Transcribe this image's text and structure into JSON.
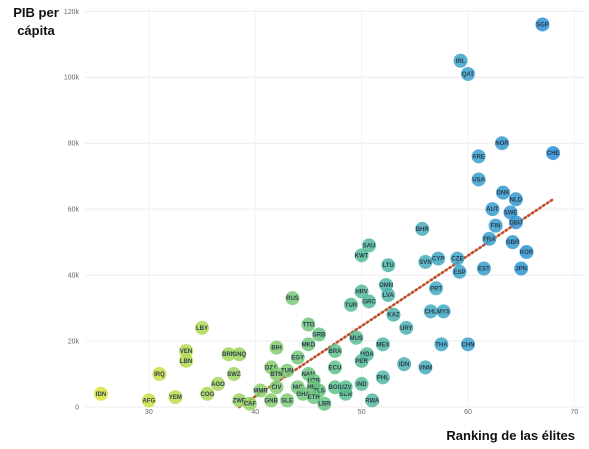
{
  "chart_data": {
    "type": "scatter",
    "ylabel_line1": "PIB per",
    "ylabel_line2": "cápita",
    "xlabel": "Ranking de las élites",
    "xlim": [
      24,
      71
    ],
    "ylim": [
      0,
      121000
    ],
    "x_ticks": [
      30,
      40,
      50,
      60,
      70
    ],
    "y_ticks": [
      {
        "v": 0,
        "label": "0"
      },
      {
        "v": 20000,
        "label": "20k"
      },
      {
        "v": 40000,
        "label": "40k"
      },
      {
        "v": 60000,
        "label": "60k"
      },
      {
        "v": 80000,
        "label": "80k"
      },
      {
        "v": 100000,
        "label": "100k"
      },
      {
        "v": 120000,
        "label": "120k"
      }
    ],
    "grid": true,
    "trendline": {
      "style": "dotted",
      "color": "#c0502a",
      "x": [
        38.5,
        68
      ],
      "y": [
        0,
        63000
      ]
    },
    "color_scale": [
      "#d8e03a",
      "#9ed45c",
      "#5cc08a",
      "#3fa6c8",
      "#2a8fd6"
    ],
    "points": [
      {
        "label": "SGP",
        "x": 67.0,
        "y": 116000
      },
      {
        "label": "IRL",
        "x": 59.3,
        "y": 105000
      },
      {
        "label": "QAT",
        "x": 60.0,
        "y": 101000
      },
      {
        "label": "NOR",
        "x": 63.2,
        "y": 80000
      },
      {
        "label": "CHE",
        "x": 68.0,
        "y": 77000
      },
      {
        "label": "ARE",
        "x": 61.0,
        "y": 76000
      },
      {
        "label": "USA",
        "x": 61.0,
        "y": 69000
      },
      {
        "label": "DNK",
        "x": 63.3,
        "y": 65000
      },
      {
        "label": "NLD",
        "x": 64.5,
        "y": 63000
      },
      {
        "label": "AUT",
        "x": 62.3,
        "y": 60000
      },
      {
        "label": "SWE",
        "x": 64.0,
        "y": 59000
      },
      {
        "label": "FIN",
        "x": 62.6,
        "y": 55000
      },
      {
        "label": "DEU",
        "x": 64.5,
        "y": 56000
      },
      {
        "label": "GBR",
        "x": 64.2,
        "y": 50000
      },
      {
        "label": "FRA",
        "x": 62.0,
        "y": 51000
      },
      {
        "label": "BHR",
        "x": 55.7,
        "y": 54000
      },
      {
        "label": "SAU",
        "x": 50.7,
        "y": 49000
      },
      {
        "label": "KWT",
        "x": 50.0,
        "y": 46000
      },
      {
        "label": "CYP",
        "x": 57.2,
        "y": 45000
      },
      {
        "label": "SVN",
        "x": 56.0,
        "y": 44000
      },
      {
        "label": "CZE",
        "x": 59.0,
        "y": 45000
      },
      {
        "label": "KOR",
        "x": 65.5,
        "y": 47000
      },
      {
        "label": "JPN",
        "x": 65.0,
        "y": 42000
      },
      {
        "label": "ESP",
        "x": 59.2,
        "y": 41000
      },
      {
        "label": "EST",
        "x": 61.5,
        "y": 42000
      },
      {
        "label": "LTU",
        "x": 52.5,
        "y": 43000
      },
      {
        "label": "OMN",
        "x": 52.3,
        "y": 37000
      },
      {
        "label": "HRV",
        "x": 50.0,
        "y": 35000
      },
      {
        "label": "GRC",
        "x": 50.7,
        "y": 32000
      },
      {
        "label": "TUR",
        "x": 49.0,
        "y": 31000
      },
      {
        "label": "LVA",
        "x": 52.5,
        "y": 34000
      },
      {
        "label": "PRT",
        "x": 57.0,
        "y": 36000
      },
      {
        "label": "RUS",
        "x": 43.5,
        "y": 33000
      },
      {
        "label": "KAZ",
        "x": 53.0,
        "y": 28000
      },
      {
        "label": "CHL",
        "x": 56.5,
        "y": 29000
      },
      {
        "label": "MYS",
        "x": 57.7,
        "y": 29000
      },
      {
        "label": "URY",
        "x": 54.2,
        "y": 24000
      },
      {
        "label": "TTO",
        "x": 45.0,
        "y": 25000
      },
      {
        "label": "SRB",
        "x": 46.0,
        "y": 22000
      },
      {
        "label": "MUS",
        "x": 49.5,
        "y": 21000
      },
      {
        "label": "MEX",
        "x": 52.0,
        "y": 19000
      },
      {
        "label": "MKD",
        "x": 45.0,
        "y": 19000
      },
      {
        "label": "BRA",
        "x": 47.5,
        "y": 17000
      },
      {
        "label": "MDA",
        "x": 50.5,
        "y": 16000
      },
      {
        "label": "ECU",
        "x": 47.5,
        "y": 12000
      },
      {
        "label": "PER",
        "x": 50.0,
        "y": 14000
      },
      {
        "label": "LBY",
        "x": 35.0,
        "y": 24000
      },
      {
        "label": "VEN",
        "x": 33.5,
        "y": 17000
      },
      {
        "label": "LBN",
        "x": 33.5,
        "y": 14000
      },
      {
        "label": "IRQ",
        "x": 31.0,
        "y": 10000
      },
      {
        "label": "BRN",
        "x": 37.5,
        "y": 16000
      },
      {
        "label": "GNQ",
        "x": 38.5,
        "y": 16000
      },
      {
        "label": "SWZ",
        "x": 38.0,
        "y": 10000
      },
      {
        "label": "BIH",
        "x": 42.0,
        "y": 18000
      },
      {
        "label": "THA",
        "x": 57.5,
        "y": 19000
      },
      {
        "label": "CHN",
        "x": 60.0,
        "y": 19000
      },
      {
        "label": "EGY",
        "x": 44.0,
        "y": 15000
      },
      {
        "label": "IDN",
        "x": 54.0,
        "y": 13000
      },
      {
        "label": "VNM",
        "x": 56.0,
        "y": 12000
      },
      {
        "label": "NAM",
        "x": 45.0,
        "y": 10000
      },
      {
        "label": "DZA",
        "x": 41.5,
        "y": 12000
      },
      {
        "label": "TUN",
        "x": 43.0,
        "y": 11000
      },
      {
        "label": "BTN",
        "x": 42.0,
        "y": 10000
      },
      {
        "label": "UZB",
        "x": 45.5,
        "y": 8000
      },
      {
        "label": "PHL",
        "x": 52.0,
        "y": 9000
      },
      {
        "label": "AGO",
        "x": 36.5,
        "y": 7000
      },
      {
        "label": "COG",
        "x": 35.5,
        "y": 4000
      },
      {
        "label": "CIV",
        "x": 42.0,
        "y": 6000
      },
      {
        "label": "NIC",
        "x": 44.0,
        "y": 6000
      },
      {
        "label": "HND",
        "x": 45.5,
        "y": 6000
      },
      {
        "label": "BOL",
        "x": 47.5,
        "y": 6000
      },
      {
        "label": "GHA",
        "x": 44.5,
        "y": 4000
      },
      {
        "label": "TLS",
        "x": 46.0,
        "y": 5000
      },
      {
        "label": "SEN",
        "x": 48.5,
        "y": 4000
      },
      {
        "label": "IND",
        "x": 50.0,
        "y": 7000
      },
      {
        "label": "UZV",
        "x": 48.5,
        "y": 6000
      },
      {
        "label": "MMR",
        "x": 40.5,
        "y": 5000
      },
      {
        "label": "ZWE",
        "x": 38.5,
        "y": 2000
      },
      {
        "label": "GNB",
        "x": 41.5,
        "y": 2000
      },
      {
        "label": "SLE",
        "x": 43.0,
        "y": 2000
      },
      {
        "label": "ETH",
        "x": 45.5,
        "y": 3000
      },
      {
        "label": "LBR",
        "x": 46.5,
        "y": 1000
      },
      {
        "label": "CAF",
        "x": 39.5,
        "y": 1000
      },
      {
        "label": "RWA",
        "x": 51.0,
        "y": 2000
      },
      {
        "label": "YEM",
        "x": 32.5,
        "y": 3000
      },
      {
        "label": "AFG",
        "x": 30.0,
        "y": 2000
      },
      {
        "label": "IDN",
        "x": 25.5,
        "y": 4000
      }
    ]
  }
}
